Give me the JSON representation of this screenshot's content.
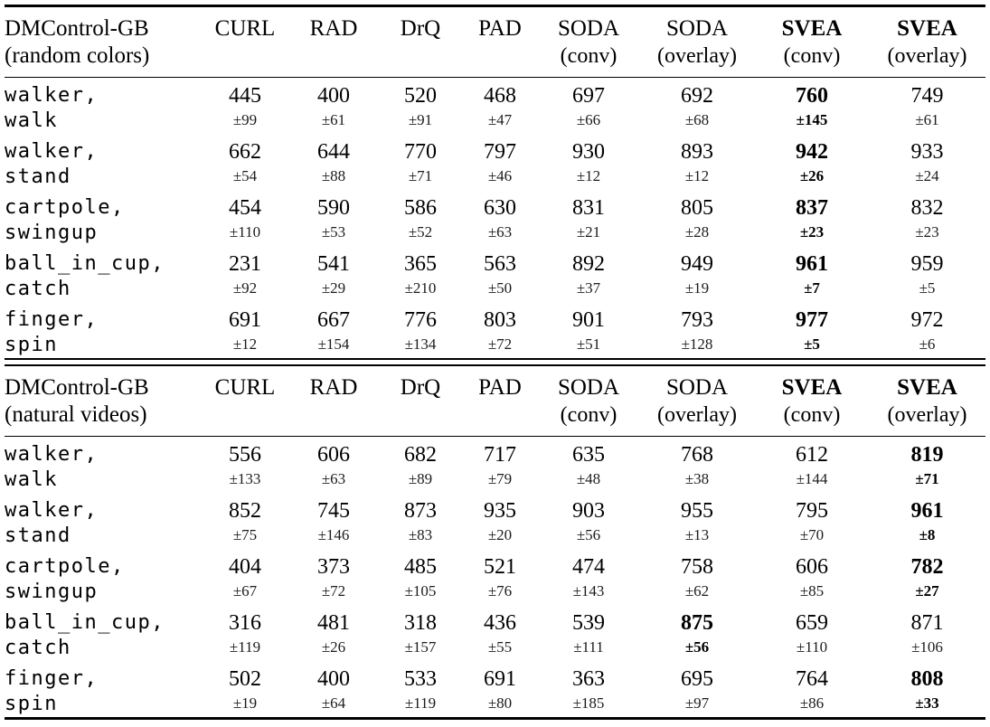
{
  "style": {
    "background": "#ffffff",
    "text_color": "#000000",
    "std_text_color": "#1c1c1c",
    "rule_color": "#000000"
  },
  "tables": [
    {
      "id": "random-colors",
      "header": {
        "title_line1": "DMControl-GB",
        "title_line2": "(random colors)"
      },
      "columns": [
        {
          "name": "CURL",
          "sub": "",
          "bold": false
        },
        {
          "name": "RAD",
          "sub": "",
          "bold": false
        },
        {
          "name": "DrQ",
          "sub": "",
          "bold": false
        },
        {
          "name": "PAD",
          "sub": "",
          "bold": false
        },
        {
          "name": "SODA",
          "sub": "(conv)",
          "bold": false
        },
        {
          "name": "SODA",
          "sub": "(overlay)",
          "bold": false
        },
        {
          "name": "SVEA",
          "sub": "(conv)",
          "bold": true
        },
        {
          "name": "SVEA",
          "sub": "(overlay)",
          "bold": true
        }
      ],
      "rows": [
        {
          "task_line1": "walker,",
          "task_line2": "walk",
          "cells": [
            {
              "mean": "445",
              "std": "±99",
              "bold": false
            },
            {
              "mean": "400",
              "std": "±61",
              "bold": false
            },
            {
              "mean": "520",
              "std": "±91",
              "bold": false
            },
            {
              "mean": "468",
              "std": "±47",
              "bold": false
            },
            {
              "mean": "697",
              "std": "±66",
              "bold": false
            },
            {
              "mean": "692",
              "std": "±68",
              "bold": false
            },
            {
              "mean": "760",
              "std": "±145",
              "bold": true
            },
            {
              "mean": "749",
              "std": "±61",
              "bold": false
            }
          ]
        },
        {
          "task_line1": "walker,",
          "task_line2": "stand",
          "cells": [
            {
              "mean": "662",
              "std": "±54",
              "bold": false
            },
            {
              "mean": "644",
              "std": "±88",
              "bold": false
            },
            {
              "mean": "770",
              "std": "±71",
              "bold": false
            },
            {
              "mean": "797",
              "std": "±46",
              "bold": false
            },
            {
              "mean": "930",
              "std": "±12",
              "bold": false
            },
            {
              "mean": "893",
              "std": "±12",
              "bold": false
            },
            {
              "mean": "942",
              "std": "±26",
              "bold": true
            },
            {
              "mean": "933",
              "std": "±24",
              "bold": false
            }
          ]
        },
        {
          "task_line1": "cartpole,",
          "task_line2": "swingup",
          "cells": [
            {
              "mean": "454",
              "std": "±110",
              "bold": false
            },
            {
              "mean": "590",
              "std": "±53",
              "bold": false
            },
            {
              "mean": "586",
              "std": "±52",
              "bold": false
            },
            {
              "mean": "630",
              "std": "±63",
              "bold": false
            },
            {
              "mean": "831",
              "std": "±21",
              "bold": false
            },
            {
              "mean": "805",
              "std": "±28",
              "bold": false
            },
            {
              "mean": "837",
              "std": "±23",
              "bold": true
            },
            {
              "mean": "832",
              "std": "±23",
              "bold": false
            }
          ]
        },
        {
          "task_line1": "ball_in_cup,",
          "task_line2": "catch",
          "cells": [
            {
              "mean": "231",
              "std": "±92",
              "bold": false
            },
            {
              "mean": "541",
              "std": "±29",
              "bold": false
            },
            {
              "mean": "365",
              "std": "±210",
              "bold": false
            },
            {
              "mean": "563",
              "std": "±50",
              "bold": false
            },
            {
              "mean": "892",
              "std": "±37",
              "bold": false
            },
            {
              "mean": "949",
              "std": "±19",
              "bold": false
            },
            {
              "mean": "961",
              "std": "±7",
              "bold": true
            },
            {
              "mean": "959",
              "std": "±5",
              "bold": false
            }
          ]
        },
        {
          "task_line1": "finger,",
          "task_line2": "spin",
          "cells": [
            {
              "mean": "691",
              "std": "±12",
              "bold": false
            },
            {
              "mean": "667",
              "std": "±154",
              "bold": false
            },
            {
              "mean": "776",
              "std": "±134",
              "bold": false
            },
            {
              "mean": "803",
              "std": "±72",
              "bold": false
            },
            {
              "mean": "901",
              "std": "±51",
              "bold": false
            },
            {
              "mean": "793",
              "std": "±128",
              "bold": false
            },
            {
              "mean": "977",
              "std": "±5",
              "bold": true
            },
            {
              "mean": "972",
              "std": "±6",
              "bold": false
            }
          ]
        }
      ]
    },
    {
      "id": "natural-videos",
      "header": {
        "title_line1": "DMControl-GB",
        "title_line2": "(natural videos)"
      },
      "columns": [
        {
          "name": "CURL",
          "sub": "",
          "bold": false
        },
        {
          "name": "RAD",
          "sub": "",
          "bold": false
        },
        {
          "name": "DrQ",
          "sub": "",
          "bold": false
        },
        {
          "name": "PAD",
          "sub": "",
          "bold": false
        },
        {
          "name": "SODA",
          "sub": "(conv)",
          "bold": false
        },
        {
          "name": "SODA",
          "sub": "(overlay)",
          "bold": false
        },
        {
          "name": "SVEA",
          "sub": "(conv)",
          "bold": true
        },
        {
          "name": "SVEA",
          "sub": "(overlay)",
          "bold": true
        }
      ],
      "rows": [
        {
          "task_line1": "walker,",
          "task_line2": "walk",
          "cells": [
            {
              "mean": "556",
              "std": "±133",
              "bold": false
            },
            {
              "mean": "606",
              "std": "±63",
              "bold": false
            },
            {
              "mean": "682",
              "std": "±89",
              "bold": false
            },
            {
              "mean": "717",
              "std": "±79",
              "bold": false
            },
            {
              "mean": "635",
              "std": "±48",
              "bold": false
            },
            {
              "mean": "768",
              "std": "±38",
              "bold": false
            },
            {
              "mean": "612",
              "std": "±144",
              "bold": false
            },
            {
              "mean": "819",
              "std": "±71",
              "bold": true
            }
          ]
        },
        {
          "task_line1": "walker,",
          "task_line2": "stand",
          "cells": [
            {
              "mean": "852",
              "std": "±75",
              "bold": false
            },
            {
              "mean": "745",
              "std": "±146",
              "bold": false
            },
            {
              "mean": "873",
              "std": "±83",
              "bold": false
            },
            {
              "mean": "935",
              "std": "±20",
              "bold": false
            },
            {
              "mean": "903",
              "std": "±56",
              "bold": false
            },
            {
              "mean": "955",
              "std": "±13",
              "bold": false
            },
            {
              "mean": "795",
              "std": "±70",
              "bold": false
            },
            {
              "mean": "961",
              "std": "±8",
              "bold": true
            }
          ]
        },
        {
          "task_line1": "cartpole,",
          "task_line2": "swingup",
          "cells": [
            {
              "mean": "404",
              "std": "±67",
              "bold": false
            },
            {
              "mean": "373",
              "std": "±72",
              "bold": false
            },
            {
              "mean": "485",
              "std": "±105",
              "bold": false
            },
            {
              "mean": "521",
              "std": "±76",
              "bold": false
            },
            {
              "mean": "474",
              "std": "±143",
              "bold": false
            },
            {
              "mean": "758",
              "std": "±62",
              "bold": false
            },
            {
              "mean": "606",
              "std": "±85",
              "bold": false
            },
            {
              "mean": "782",
              "std": "±27",
              "bold": true
            }
          ]
        },
        {
          "task_line1": "ball_in_cup,",
          "task_line2": "catch",
          "cells": [
            {
              "mean": "316",
              "std": "±119",
              "bold": false
            },
            {
              "mean": "481",
              "std": "±26",
              "bold": false
            },
            {
              "mean": "318",
              "std": "±157",
              "bold": false
            },
            {
              "mean": "436",
              "std": "±55",
              "bold": false
            },
            {
              "mean": "539",
              "std": "±111",
              "bold": false
            },
            {
              "mean": "875",
              "std": "±56",
              "bold": true
            },
            {
              "mean": "659",
              "std": "±110",
              "bold": false
            },
            {
              "mean": "871",
              "std": "±106",
              "bold": false
            }
          ]
        },
        {
          "task_line1": "finger,",
          "task_line2": "spin",
          "cells": [
            {
              "mean": "502",
              "std": "±19",
              "bold": false
            },
            {
              "mean": "400",
              "std": "±64",
              "bold": false
            },
            {
              "mean": "533",
              "std": "±119",
              "bold": false
            },
            {
              "mean": "691",
              "std": "±80",
              "bold": false
            },
            {
              "mean": "363",
              "std": "±185",
              "bold": false
            },
            {
              "mean": "695",
              "std": "±97",
              "bold": false
            },
            {
              "mean": "764",
              "std": "±86",
              "bold": false
            },
            {
              "mean": "808",
              "std": "±33",
              "bold": true
            }
          ]
        }
      ]
    }
  ]
}
